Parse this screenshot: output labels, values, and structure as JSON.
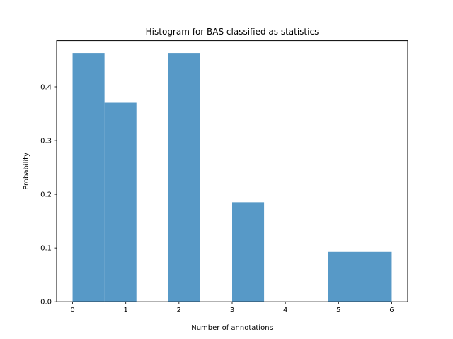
{
  "chart_data": {
    "type": "bar",
    "title": "Histogram for BAS classified as statistics",
    "xlabel": "Number of annotations",
    "ylabel": "Probability",
    "bin_edges": [
      0,
      0.6,
      1.2,
      1.8,
      2.4,
      3.0,
      3.6,
      4.2,
      4.8,
      5.4,
      6.0
    ],
    "values": [
      0.463,
      0.3704,
      0.0,
      0.463,
      0.0,
      0.1852,
      0.0,
      0.0,
      0.0926,
      0.0926
    ],
    "xlim": [
      -0.3,
      6.3
    ],
    "ylim": [
      0,
      0.486
    ],
    "xticks": [
      0,
      1,
      2,
      3,
      4,
      5,
      6
    ],
    "xtick_labels": [
      "0",
      "1",
      "2",
      "3",
      "4",
      "5",
      "6"
    ],
    "yticks": [
      0.0,
      0.1,
      0.2,
      0.3,
      0.4
    ],
    "ytick_labels": [
      "0.0",
      "0.1",
      "0.2",
      "0.3",
      "0.4"
    ],
    "bar_color": "#5799c7",
    "grid": false
  }
}
